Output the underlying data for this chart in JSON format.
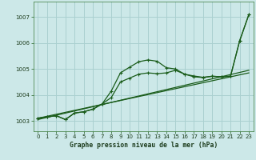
{
  "title": "Graphe pression niveau de la mer (hPa)",
  "bg_color": "#cce8e8",
  "grid_color": "#aad0d0",
  "line_color": "#1a5c1a",
  "xlim": [
    -0.5,
    23.5
  ],
  "ylim": [
    1002.6,
    1007.6
  ],
  "xticks": [
    0,
    1,
    2,
    3,
    4,
    5,
    6,
    7,
    8,
    9,
    10,
    11,
    12,
    13,
    14,
    15,
    16,
    17,
    18,
    19,
    20,
    21,
    22,
    23
  ],
  "yticks": [
    1003,
    1004,
    1005,
    1006,
    1007
  ],
  "series": [
    {
      "x": [
        0,
        23
      ],
      "y": [
        1003.05,
        1004.95
      ],
      "marker": false,
      "lw": 0.9
    },
    {
      "x": [
        0,
        23
      ],
      "y": [
        1003.1,
        1004.85
      ],
      "marker": false,
      "lw": 0.9
    },
    {
      "x": [
        0,
        1,
        2,
        3,
        4,
        5,
        6,
        7,
        8,
        9,
        10,
        11,
        12,
        13,
        14,
        15,
        16,
        17,
        18,
        19,
        20,
        21,
        22,
        23
      ],
      "y": [
        1003.1,
        1003.15,
        1003.2,
        1003.05,
        1003.3,
        1003.35,
        1003.45,
        1003.65,
        1004.15,
        1004.85,
        1005.07,
        1005.28,
        1005.35,
        1005.3,
        1005.05,
        1005.0,
        1004.8,
        1004.7,
        1004.67,
        1004.72,
        1004.7,
        1004.72,
        1006.1,
        1007.1
      ],
      "marker": true,
      "lw": 0.9
    },
    {
      "x": [
        0,
        1,
        2,
        3,
        4,
        5,
        6,
        7,
        8,
        9,
        10,
        11,
        12,
        13,
        14,
        15,
        16,
        17,
        18,
        19,
        20,
        21,
        22,
        23
      ],
      "y": [
        1003.1,
        1003.15,
        1003.2,
        1003.05,
        1003.3,
        1003.35,
        1003.45,
        1003.65,
        1003.9,
        1004.5,
        1004.65,
        1004.8,
        1004.85,
        1004.82,
        1004.85,
        1004.95,
        1004.8,
        1004.73,
        1004.68,
        1004.72,
        1004.7,
        1004.72,
        1006.08,
        1007.1
      ],
      "marker": true,
      "lw": 0.9
    }
  ]
}
